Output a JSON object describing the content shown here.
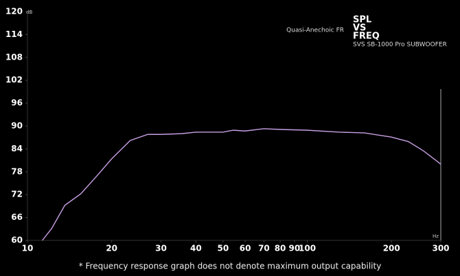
{
  "chart_data": {
    "type": "line",
    "title_lines": [
      "SPL",
      "VS",
      "FREQ"
    ],
    "subtitle": "SVS SB-1000 Pro SUBWOOFER",
    "y_unit": "dB",
    "x_unit": "Hz",
    "footnote": "* Frequency response graph does not denote maximum output capability",
    "x": [
      11.3,
      12.2,
      13.6,
      15.5,
      17.6,
      20,
      23.3,
      26.9,
      30,
      35.6,
      40,
      50,
      54.4,
      60,
      70,
      80,
      100,
      130,
      160,
      200,
      230,
      260,
      300
    ],
    "series": [
      {
        "name": "Quasi-Anechoic FR",
        "color": "#c9a0e4",
        "values": [
          60,
          63.1,
          69.2,
          72.2,
          76.7,
          81.4,
          86.2,
          87.8,
          87.8,
          88,
          88.4,
          88.4,
          88.9,
          88.7,
          89.3,
          89.1,
          88.9,
          88.4,
          88.2,
          87.1,
          85.9,
          83.5,
          80
        ]
      }
    ],
    "xlim": [
      10,
      300
    ],
    "xticks": [
      10,
      20,
      30,
      40,
      50,
      60,
      70,
      80,
      90,
      100,
      200,
      300
    ],
    "xlog": true,
    "ylim": [
      60,
      120
    ],
    "yticks": [
      60,
      66,
      72,
      78,
      84,
      90,
      96,
      102,
      108,
      114,
      120
    ]
  }
}
